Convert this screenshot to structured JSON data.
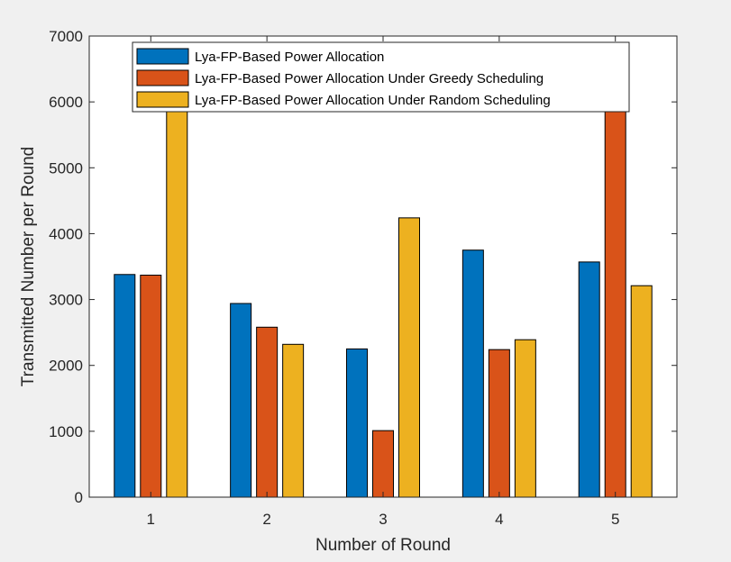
{
  "colors": {
    "figure_background": "#f0f0f0",
    "axes_background": "#ffffff",
    "axis_color": "#262626",
    "series": [
      "#0072bd",
      "#d95319",
      "#edb120"
    ]
  },
  "chart_data": {
    "type": "bar",
    "title": "",
    "xlabel": "Number of Round",
    "ylabel": "Transmitted Number per Round",
    "categories": [
      "1",
      "2",
      "3",
      "4",
      "5"
    ],
    "ylim": [
      0,
      7000
    ],
    "yticks": [
      "0",
      "1000",
      "2000",
      "3000",
      "4000",
      "5000",
      "6000",
      "7000"
    ],
    "grid": false,
    "legend_position": "top",
    "series": [
      {
        "name": "Lya-FP-Based Power Allocation",
        "values": [
          3380,
          2940,
          2250,
          3750,
          3570
        ]
      },
      {
        "name": "Lya-FP-Based Power Allocation Under Greedy Scheduling",
        "values": [
          3370,
          2580,
          1010,
          2240,
          5990
        ]
      },
      {
        "name": "Lya-FP-Based Power Allocation Under Random Scheduling",
        "values": [
          6000,
          2320,
          4240,
          2390,
          3210
        ]
      }
    ]
  }
}
